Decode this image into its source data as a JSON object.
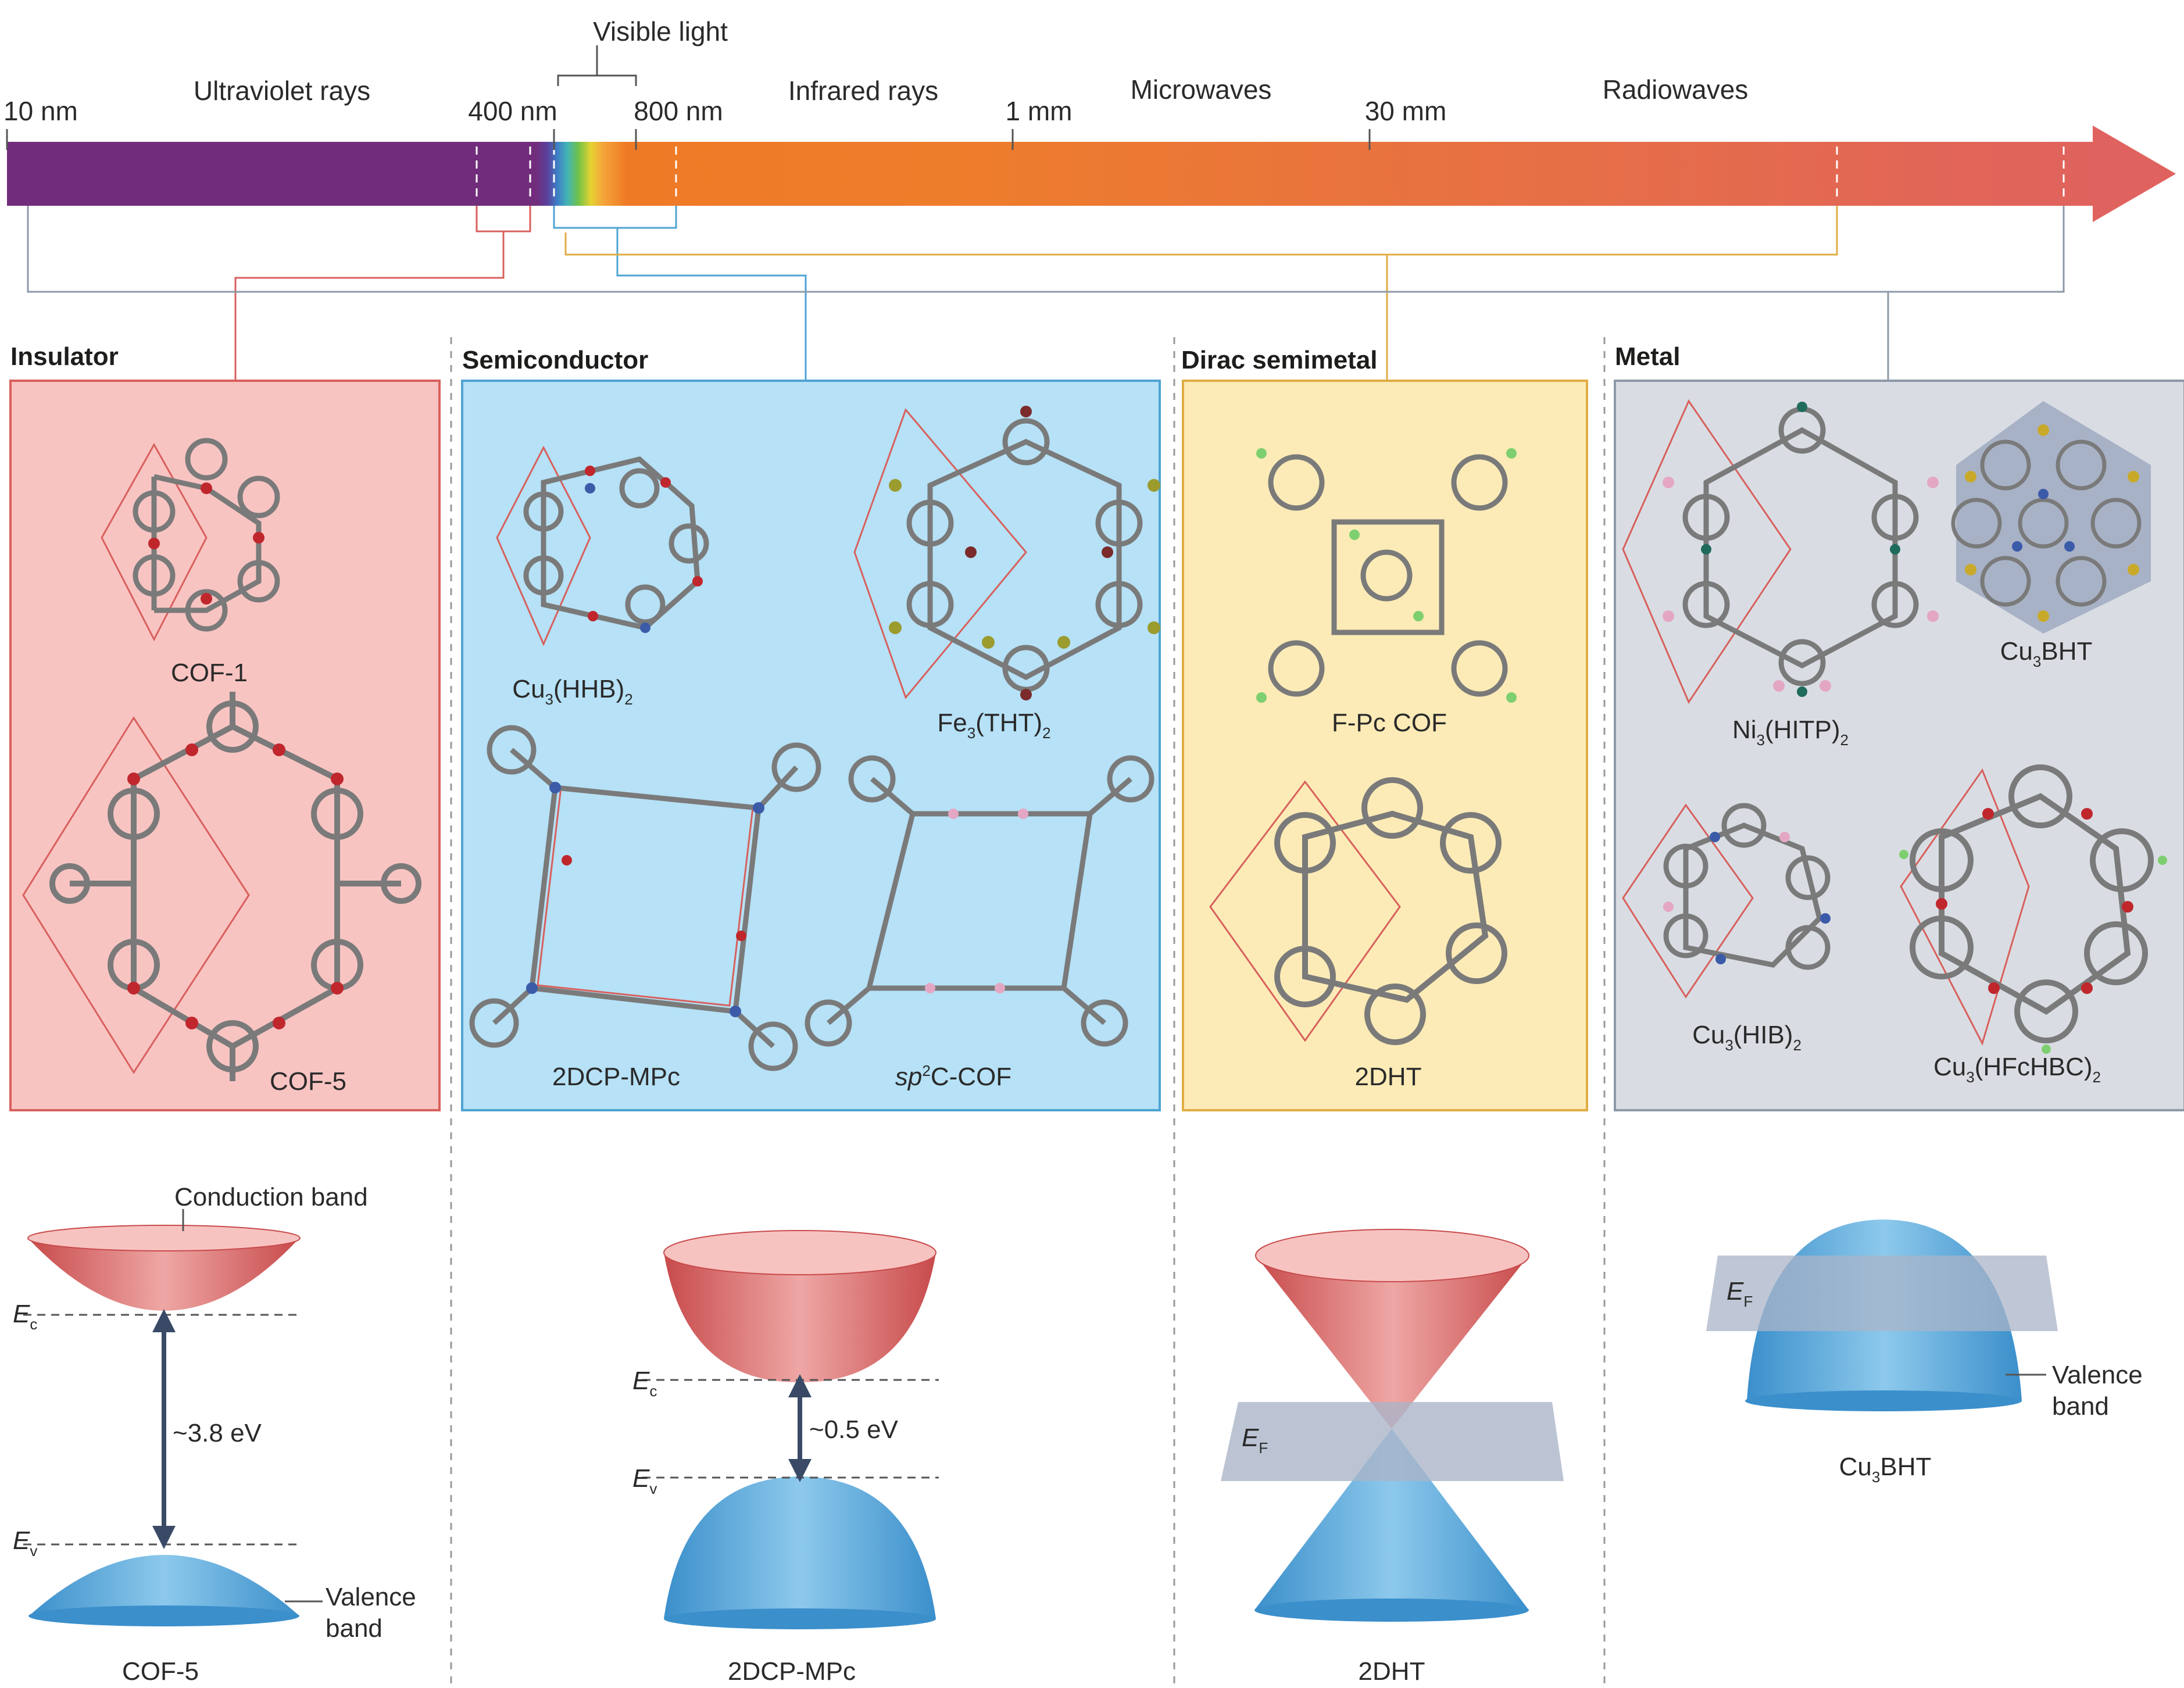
{
  "spectrum": {
    "visible_label": "Visible light",
    "bands": [
      {
        "key": "uv",
        "label": "Ultraviolet rays"
      },
      {
        "key": "ir",
        "label": "Infrared rays"
      },
      {
        "key": "mw",
        "label": "Microwaves"
      },
      {
        "key": "radio",
        "label": "Radiowaves"
      }
    ],
    "ticks": [
      "10 nm",
      "400 nm",
      "800 nm",
      "1 mm",
      "30 mm"
    ],
    "colors": {
      "uv": "#712d7b",
      "ir": "#ee7d2b",
      "end": "#e0625e"
    }
  },
  "panels": [
    {
      "key": "insulator",
      "title": "Insulator",
      "color": "#f8c4c2",
      "border": "#d8605d",
      "structures": [
        "COF-1",
        "COF-5"
      ]
    },
    {
      "key": "semiconductor",
      "title": "Semiconductor",
      "color": "#b6e1f6",
      "border": "#4fa3d3",
      "structures": [
        {
          "main": "Cu",
          "sub1": "3",
          "mid": "(HHB)",
          "sub2": "2"
        },
        {
          "main": "Fe",
          "sub1": "3",
          "mid": "(THT)",
          "sub2": "2"
        },
        {
          "main": "2DCP-MPc"
        },
        {
          "italic": "sp",
          "sup": "2",
          "rest": "C-COF"
        }
      ]
    },
    {
      "key": "dirac",
      "title": "Dirac semimetal",
      "color": "#fcebb6",
      "border": "#e0ad44",
      "structures": [
        "F-Pc COF",
        "2DHT"
      ]
    },
    {
      "key": "metal",
      "title": "Metal",
      "color": "#d9dde3",
      "border": "#8d99a8",
      "structures": [
        {
          "main": "Ni",
          "sub1": "3",
          "mid": "(HITP)",
          "sub2": "2"
        },
        {
          "main": "Cu",
          "sub1": "3",
          "mid": "BHT"
        },
        {
          "main": "Cu",
          "sub1": "3",
          "mid": "(HIB)",
          "sub2": "2"
        },
        {
          "main": "Cu",
          "sub1": "3",
          "mid": "(HFcHBC)",
          "sub2": "2"
        }
      ]
    }
  ],
  "bands": {
    "insulator": {
      "conduction_label": "Conduction band",
      "gap": "~3.8 eV",
      "valence_label_1": "Valence",
      "valence_label_2": "band",
      "ec": "E",
      "ec_sub": "c",
      "ev": "E",
      "ev_sub": "v",
      "caption": "COF-5"
    },
    "semiconductor": {
      "gap": "~0.5 eV",
      "ec": "E",
      "ec_sub": "c",
      "ev": "E",
      "ev_sub": "v",
      "caption": "2DCP-MPc"
    },
    "dirac": {
      "ef": "E",
      "ef_sub": "F",
      "caption": "2DHT"
    },
    "metal": {
      "ef": "E",
      "ef_sub": "F",
      "valence_label_1": "Valence",
      "valence_label_2": "band",
      "caption_main": "Cu",
      "caption_sub": "3",
      "caption_rest": "BHT"
    }
  }
}
